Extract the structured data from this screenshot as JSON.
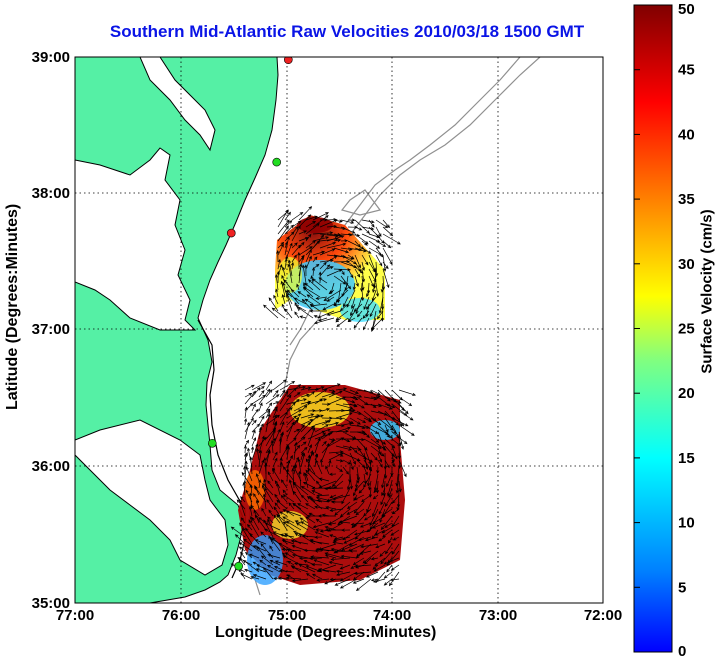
{
  "title": "Southern Mid-Atlantic Raw Velocities 2010/03/18 1500 GMT",
  "xlabel": "Longitude (Degrees:Minutes)",
  "ylabel": "Latitude (Degrees:Minutes)",
  "colorbar_label": "Surface Velocity (cm/s)",
  "x_ticks": [
    "77:00",
    "76:00",
    "75:00",
    "74:00",
    "73:00",
    "72:00"
  ],
  "y_ticks": [
    "39:00",
    "38:00",
    "37:00",
    "36:00",
    "35:00"
  ],
  "colorbar_ticks": [
    "0",
    "5",
    "10",
    "15",
    "20",
    "25",
    "30",
    "35",
    "40",
    "45",
    "50"
  ],
  "colors": {
    "land": "#55f0a5",
    "title": "#0a14e6",
    "coast": "#000000",
    "bathymetry": "#909090",
    "grid": "#000000",
    "station_green": "#22dd22",
    "station_red": "#ee2222"
  },
  "map": {
    "lon_range": [
      -77,
      -72
    ],
    "lat_range": [
      35,
      39
    ],
    "colorbar_range": [
      0,
      50
    ],
    "grid": true,
    "colorbar": "jet"
  },
  "stations": [
    {
      "type": "red",
      "lon": -74.98,
      "lat": 38.98
    },
    {
      "type": "green",
      "lon": -75.09,
      "lat": 38.23
    },
    {
      "type": "red",
      "lon": -75.52,
      "lat": 37.71
    },
    {
      "type": "green",
      "lon": -75.7,
      "lat": 36.17
    },
    {
      "type": "green",
      "lon": -75.45,
      "lat": 35.27
    }
  ],
  "velocity_regions": [
    {
      "name": "north-patch",
      "approx_speed_range_cm_s": [
        5,
        50
      ]
    },
    {
      "name": "south-patch",
      "approx_speed_range_cm_s": [
        5,
        50
      ]
    }
  ]
}
